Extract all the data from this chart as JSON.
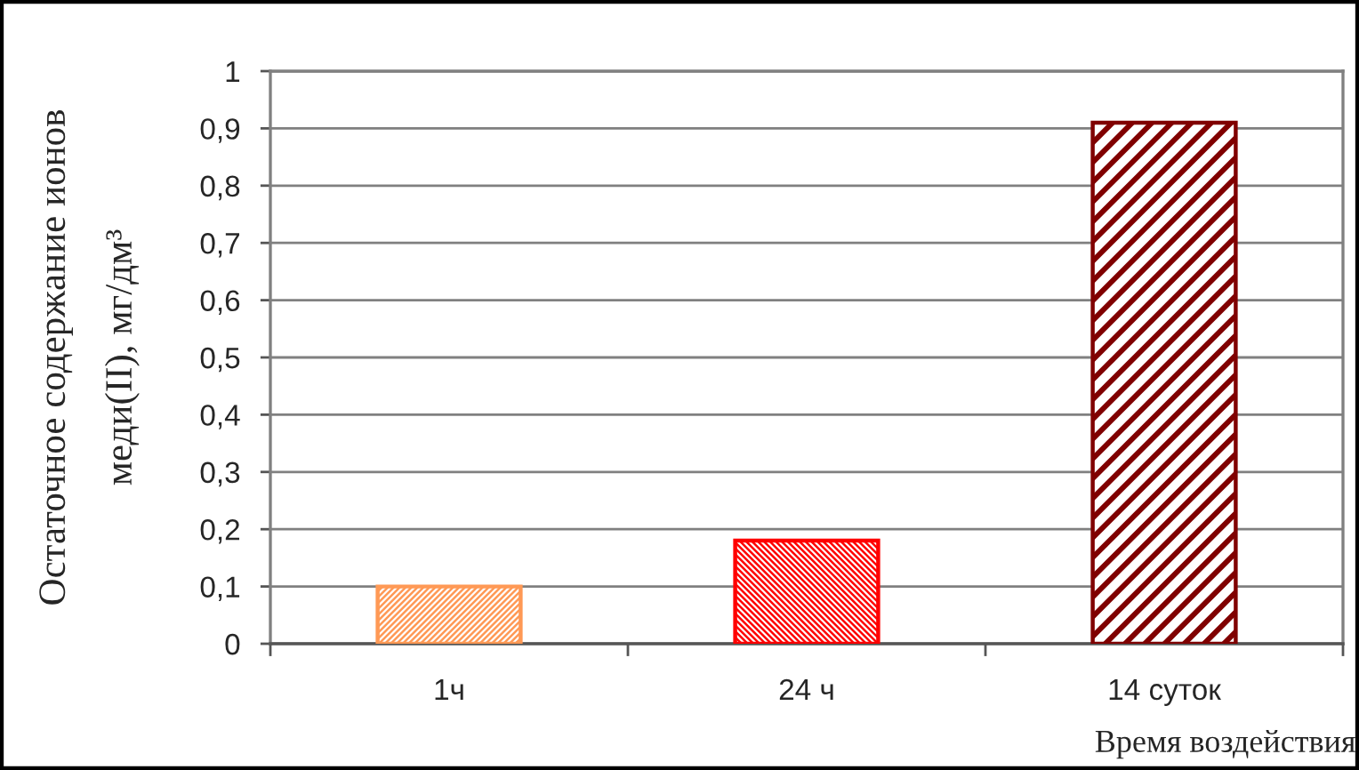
{
  "chart_data": {
    "type": "bar",
    "categories": [
      "1ч",
      "24 ч",
      "14 суток"
    ],
    "values": [
      0.1,
      0.18,
      0.91
    ],
    "colors": [
      "#ff9955",
      "#ff0000",
      "#800000"
    ],
    "xlabel": "Время воздействия",
    "ylabel": "Остаточное содержание ионов\nмеди(II), мг/дм³",
    "ylim": [
      0,
      1
    ],
    "yticks": [
      0,
      {
        "value": 0.1,
        "label": "0,1"
      },
      {
        "value": 0.2,
        "label": "0,2"
      },
      {
        "value": 0.3,
        "label": "0,3"
      },
      {
        "value": 0.4,
        "label": "0,4"
      },
      {
        "value": 0.5,
        "label": "0,5"
      },
      {
        "value": 0.6,
        "label": "0,6"
      },
      {
        "value": 0.7,
        "label": "0,7"
      },
      {
        "value": 0.8,
        "label": "0,8"
      },
      {
        "value": 0.9,
        "label": "0,9"
      },
      1
    ],
    "grid": "y"
  }
}
